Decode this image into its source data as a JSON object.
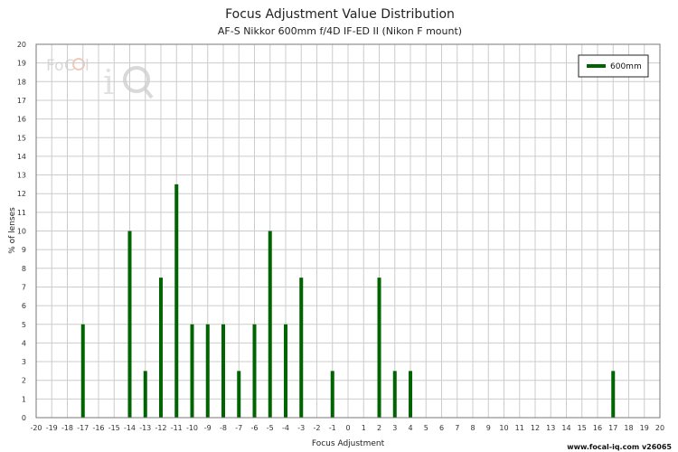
{
  "chart_data": {
    "type": "bar",
    "title": "Focus Adjustment Value Distribution",
    "subtitle": "AF-S Nikkor 600mm f/4D IF-ED II (Nikon F mount)",
    "xlabel": "Focus Adjustment",
    "ylabel": "% of lenses",
    "xlim": [
      -20,
      20
    ],
    "ylim": [
      0,
      20
    ],
    "grid": true,
    "legend_position": "top-right",
    "series": [
      {
        "name": "600mm",
        "color": "#006400",
        "points": [
          {
            "x": -17,
            "y": 5
          },
          {
            "x": -14,
            "y": 10
          },
          {
            "x": -13,
            "y": 2.5
          },
          {
            "x": -12,
            "y": 7.5
          },
          {
            "x": -11,
            "y": 12.5
          },
          {
            "x": -10,
            "y": 5
          },
          {
            "x": -9,
            "y": 5
          },
          {
            "x": -8,
            "y": 5
          },
          {
            "x": -7,
            "y": 2.5
          },
          {
            "x": -6,
            "y": 5
          },
          {
            "x": -5,
            "y": 10
          },
          {
            "x": -4,
            "y": 5
          },
          {
            "x": -3,
            "y": 7.5
          },
          {
            "x": -1,
            "y": 2.5
          },
          {
            "x": 2,
            "y": 7.5
          },
          {
            "x": 3,
            "y": 2.5
          },
          {
            "x": 4,
            "y": 2.5
          },
          {
            "x": 17,
            "y": 2.5
          }
        ]
      }
    ]
  },
  "watermark": {
    "logo_text": "FoCal iQ"
  },
  "credit": "www.focal-iq.com v26065"
}
